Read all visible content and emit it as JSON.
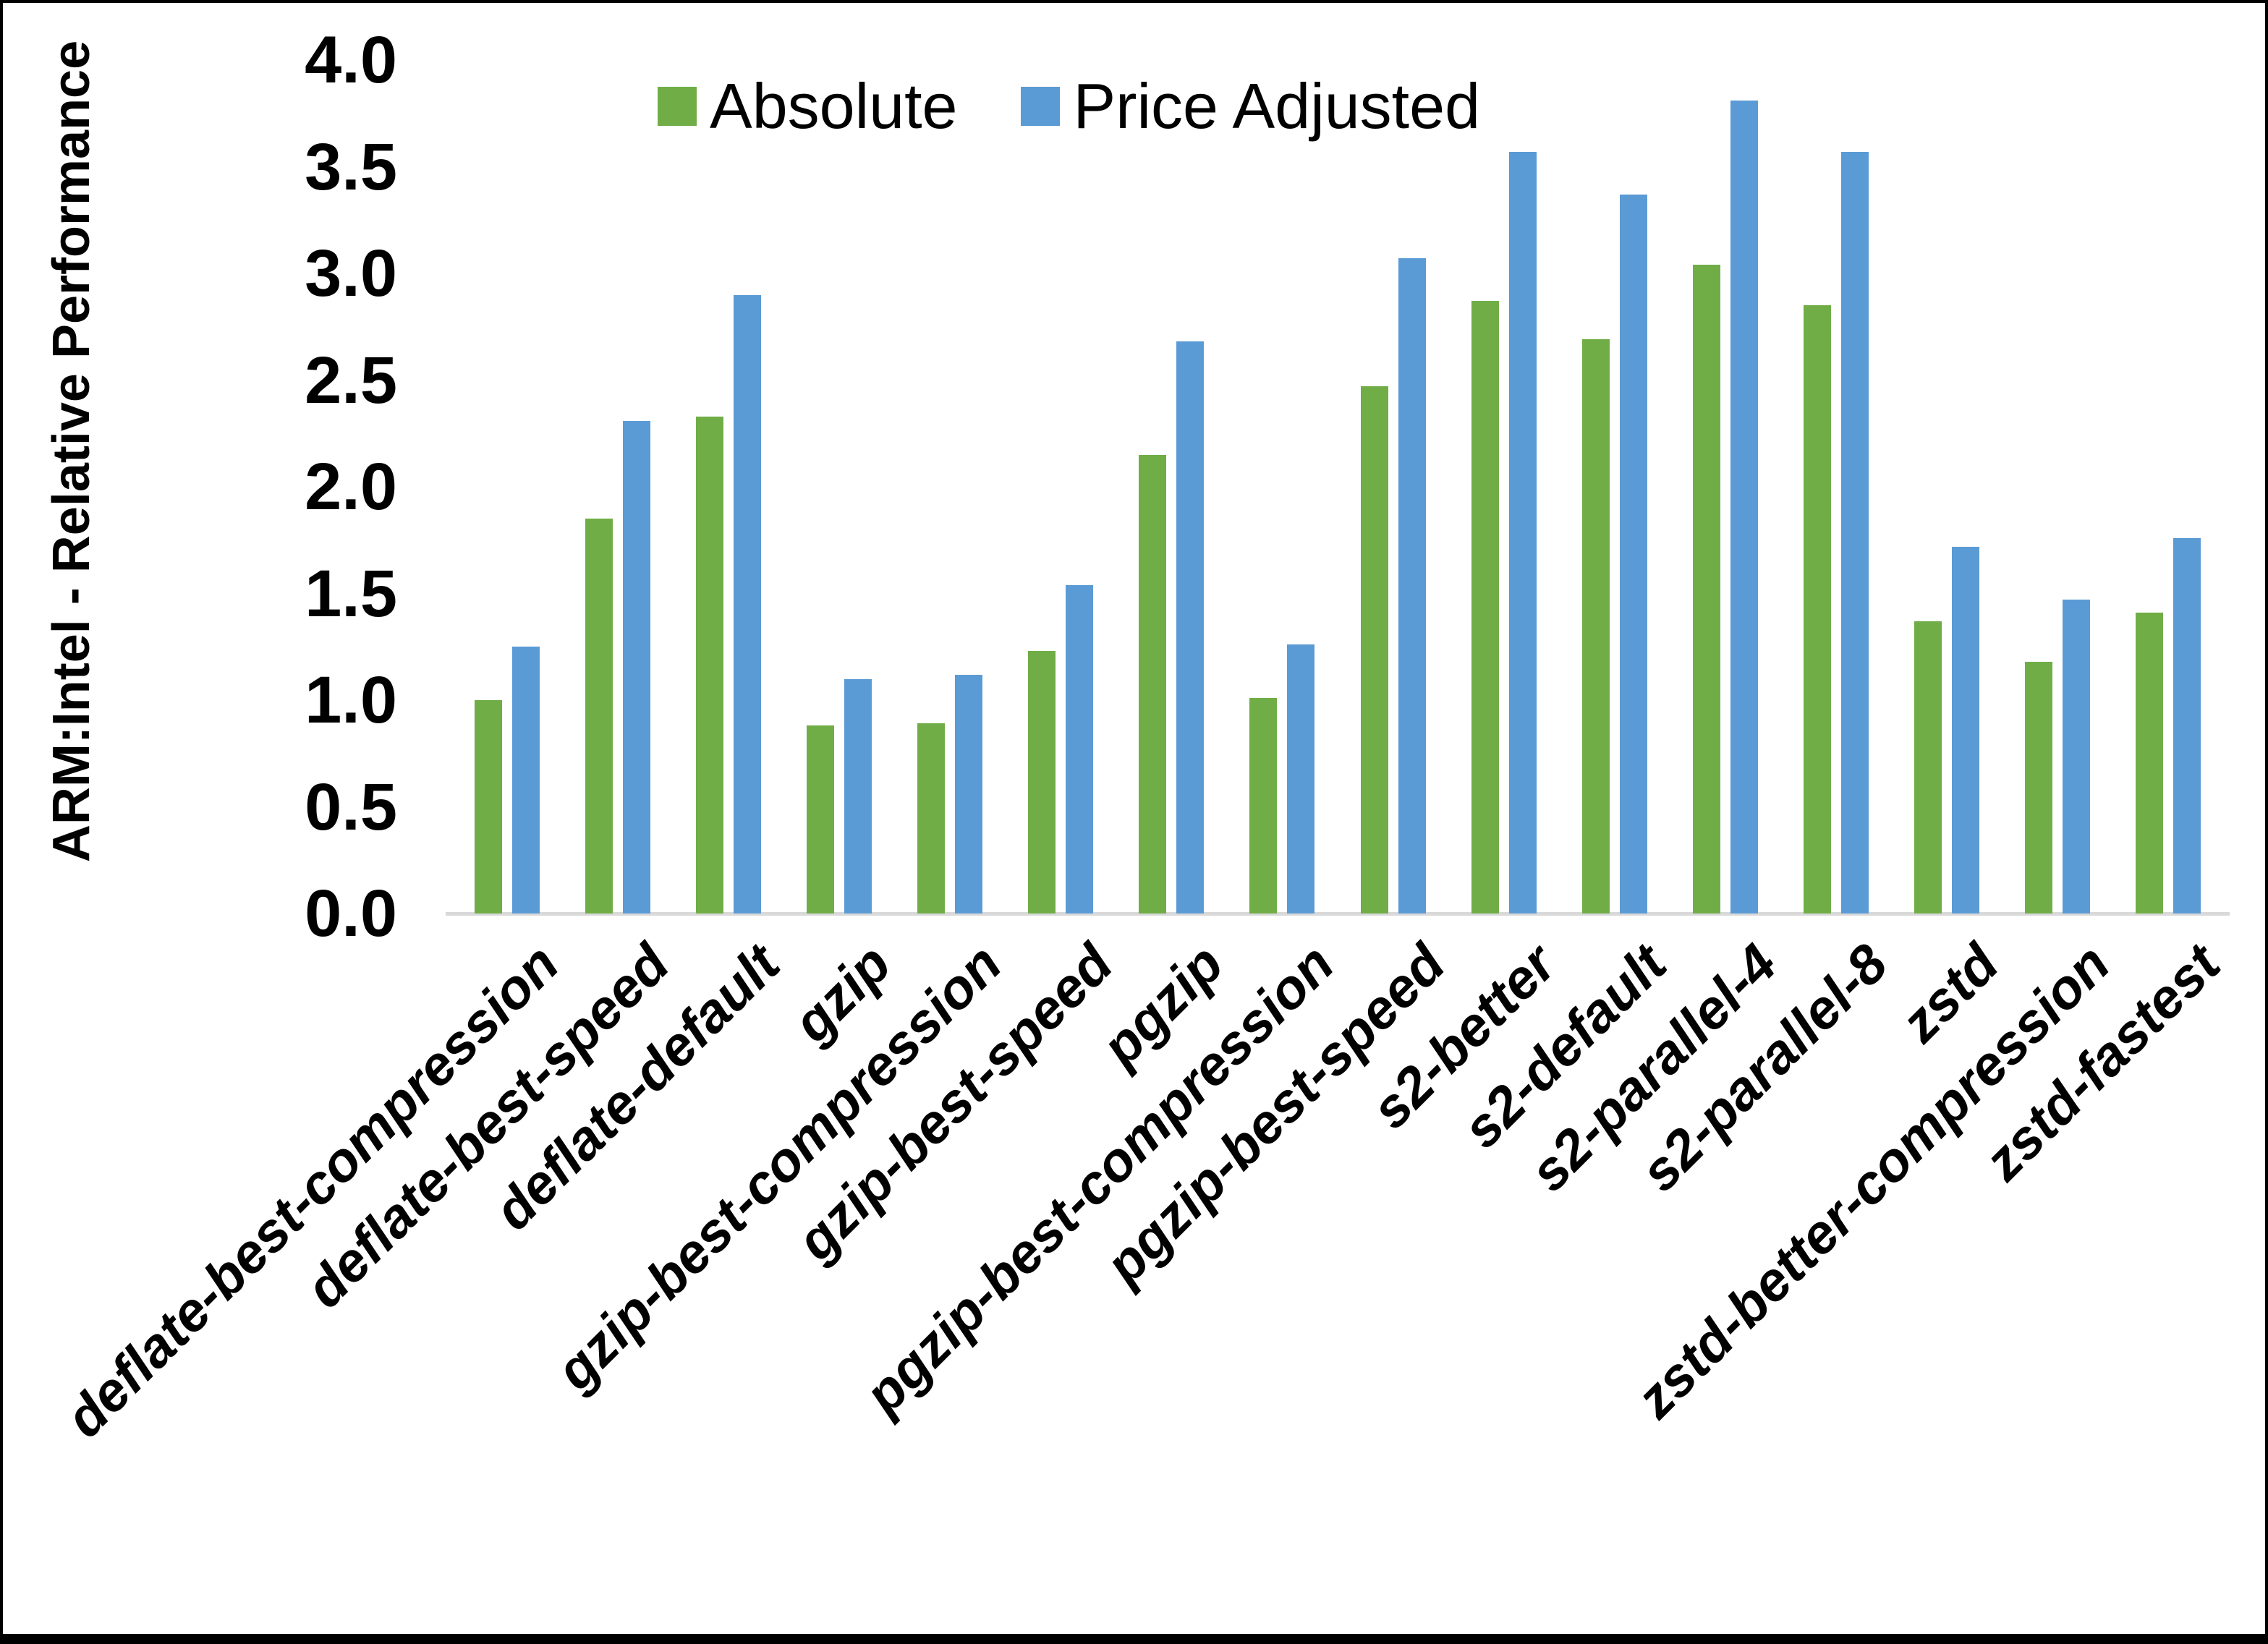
{
  "chart_data": {
    "type": "bar",
    "title": "",
    "xlabel": "",
    "ylabel": "ARM:Intel - Relative Performance",
    "ylim": [
      0,
      4
    ],
    "ytick_step": 0.5,
    "yticks": [
      "0.0",
      "0.5",
      "1.0",
      "1.5",
      "2.0",
      "2.5",
      "3.0",
      "3.5",
      "4.0"
    ],
    "grid": false,
    "legend_position": "top-center",
    "categories": [
      "deflate-best-compression",
      "deflate-best-speed",
      "deflate-default",
      "gzip",
      "gzip-best-compression",
      "gzip-best-speed",
      "pgzip",
      "pgzip-best-compression",
      "pgzip-best-speed",
      "s2-better",
      "s2-default",
      "s2-parallel-4",
      "s2-parallel-8",
      "zstd",
      "zstd-better-compression",
      "zstd-fastest"
    ],
    "series": [
      {
        "name": "Absolute",
        "color": "#70AD47",
        "values": [
          1.0,
          1.85,
          2.33,
          0.88,
          0.89,
          1.23,
          2.15,
          1.01,
          2.47,
          2.87,
          2.69,
          3.04,
          2.85,
          1.37,
          1.18,
          1.41
        ]
      },
      {
        "name": "Price Adjusted",
        "color": "#5B9BD5",
        "values": [
          1.25,
          2.31,
          2.9,
          1.1,
          1.12,
          1.54,
          2.68,
          1.26,
          3.07,
          3.57,
          3.37,
          3.81,
          3.57,
          1.72,
          1.47,
          1.76
        ]
      }
    ]
  },
  "colors": {
    "absolute": "#70AD47",
    "price_adjusted": "#5B9BD5",
    "axis_line": "#D9D9D9",
    "text": "#000000",
    "frame_border": "#000000",
    "background": "#FFFFFF"
  }
}
